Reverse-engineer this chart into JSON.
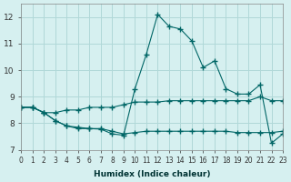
{
  "xlabel": "Humidex (Indice chaleur)",
  "background_color": "#d6f0f0",
  "grid_color": "#b0d8d8",
  "line_color": "#006666",
  "xlim": [
    0,
    23
  ],
  "ylim": [
    7,
    12.5
  ],
  "yticks": [
    7,
    8,
    9,
    10,
    11,
    12
  ],
  "xticks": [
    0,
    1,
    2,
    3,
    4,
    5,
    6,
    7,
    8,
    9,
    10,
    11,
    12,
    13,
    14,
    15,
    16,
    17,
    18,
    19,
    20,
    21,
    22,
    23
  ],
  "line1_x": [
    0,
    1,
    2,
    3,
    4,
    5,
    6,
    7,
    8,
    9,
    10,
    11,
    12,
    13,
    14,
    15,
    16,
    17,
    18,
    19,
    20,
    21,
    22,
    23
  ],
  "line1_y": [
    8.6,
    8.6,
    8.4,
    8.4,
    8.5,
    8.5,
    8.6,
    8.6,
    8.6,
    8.7,
    8.8,
    8.8,
    8.8,
    8.85,
    8.85,
    8.85,
    8.85,
    8.85,
    8.85,
    8.85,
    8.85,
    9.0,
    8.85,
    8.85
  ],
  "line2_x": [
    0,
    1,
    2,
    3,
    4,
    5,
    6,
    7,
    8,
    9,
    10,
    11,
    12,
    13,
    14,
    15,
    16,
    17,
    18,
    19,
    20,
    21,
    22,
    23
  ],
  "line2_y": [
    8.6,
    8.6,
    8.4,
    8.1,
    7.9,
    7.8,
    7.8,
    7.8,
    7.7,
    7.6,
    7.65,
    7.7,
    7.7,
    7.7,
    7.7,
    7.7,
    7.7,
    7.7,
    7.7,
    7.65,
    7.65,
    7.65,
    7.65,
    7.7
  ],
  "line3_x": [
    0,
    1,
    2,
    3,
    4,
    5,
    6,
    7,
    8,
    9,
    10,
    11,
    12,
    13,
    14,
    15,
    16,
    17,
    18,
    19,
    20,
    21,
    22,
    23
  ],
  "line3_y": [
    8.6,
    8.6,
    8.4,
    8.1,
    7.9,
    7.85,
    7.8,
    7.78,
    7.6,
    7.55,
    9.3,
    10.6,
    12.1,
    11.65,
    11.55,
    11.1,
    10.1,
    10.35,
    9.3,
    9.1,
    9.1,
    9.45,
    7.25,
    7.6
  ],
  "marker": "+"
}
